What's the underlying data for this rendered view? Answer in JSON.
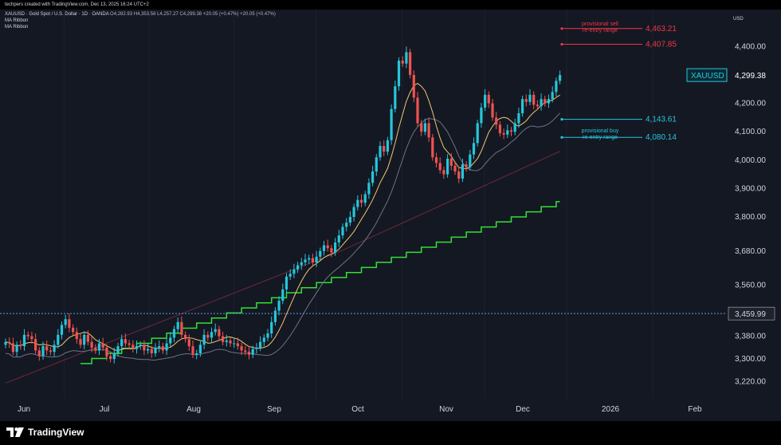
{
  "header": {
    "creator_line": "techpers created with TradingView.com, Dec 13, 2025 16:24 UTC+2"
  },
  "legend": {
    "title": "XAUUSD · Gold Spot / U.S. Dollar · 1D · OANDA",
    "ohlc": "O4,282.93 H4,353.56 L4,257.27 C4,299.38 +20.05 (+0.47%) +20.05 (+0.47%)",
    "indicator_1": "MA Ribbon",
    "indicator_2": "MA Ribbon"
  },
  "currency": "USD",
  "branding": {
    "name": "TradingView"
  },
  "colors": {
    "up": "#26c6da",
    "down": "#ef5350",
    "sell_zone": "#f23645",
    "buy_zone": "#26c6da",
    "staircase": "#33e033",
    "ma_fast": "#f0c86e",
    "ma_mid": "#6e7382",
    "ma_slow": "#6e2a38",
    "background": "#141823"
  },
  "chart_data": {
    "type": "candlestick",
    "symbol": "XAUUSD",
    "timeframe": "1D",
    "y_axis": {
      "min": 3160,
      "max": 4530,
      "ticks": [
        3220,
        3300,
        3380,
        3460,
        3560,
        3680,
        3800,
        3900,
        4000,
        4100,
        4200,
        4300,
        4400
      ],
      "tick_labels": [
        "3,220.00",
        "3,300.00",
        "3,380.00",
        "3,459.99",
        "3,560.00",
        "3,680.00",
        "3,800.00",
        "3,900.00",
        "4,000.00",
        "4,100.00",
        "4,200.00",
        "4,299.38",
        "4,400.00"
      ]
    },
    "x_axis": {
      "labels": [
        "Jun",
        "Jul",
        "Aug",
        "Sep",
        "Oct",
        "Nov",
        "Dec",
        "2026",
        "Feb"
      ]
    },
    "last_price": {
      "label": "XAUUSD",
      "value": "4,299.38"
    },
    "reference_line": {
      "value": "3,459.99"
    },
    "annotations": [
      {
        "text_1": "provisional sell",
        "text_2": "re-entry range",
        "values": [
          "4,463.21",
          "4,407.85"
        ],
        "kind": "sell"
      },
      {
        "text_1": "provisional buy",
        "text_2": "re-entry range",
        "values": [
          "4,143.61",
          "4,080.14"
        ],
        "kind": "buy"
      }
    ],
    "closes": [
      3360,
      3355,
      3325,
      3350,
      3345,
      3385,
      3380,
      3370,
      3330,
      3310,
      3345,
      3330,
      3325,
      3350,
      3385,
      3420,
      3440,
      3410,
      3395,
      3370,
      3350,
      3385,
      3360,
      3340,
      3330,
      3355,
      3340,
      3310,
      3300,
      3320,
      3345,
      3370,
      3355,
      3350,
      3335,
      3345,
      3350,
      3330,
      3335,
      3320,
      3340,
      3345,
      3330,
      3355,
      3375,
      3405,
      3430,
      3385,
      3370,
      3345,
      3315,
      3320,
      3350,
      3385,
      3375,
      3395,
      3405,
      3380,
      3360,
      3365,
      3355,
      3355,
      3345,
      3330,
      3325,
      3315,
      3335,
      3340,
      3360,
      3375,
      3390,
      3430,
      3470,
      3505,
      3545,
      3590,
      3600,
      3615,
      3630,
      3640,
      3650,
      3655,
      3640,
      3660,
      3680,
      3700,
      3690,
      3675,
      3710,
      3735,
      3765,
      3780,
      3800,
      3835,
      3860,
      3850,
      3880,
      3920,
      3960,
      4010,
      4050,
      4030,
      4070,
      4180,
      4260,
      4350,
      4340,
      4380,
      4300,
      4220,
      4130,
      4100,
      4130,
      4080,
      4010,
      3990,
      3965,
      3950,
      4005,
      3980,
      3960,
      3935,
      3985,
      3975,
      4020,
      4060,
      4130,
      4185,
      4230,
      4200,
      4150,
      4125,
      4095,
      4090,
      4105,
      4100,
      4130,
      4165,
      4215,
      4205,
      4230,
      4195,
      4190,
      4215,
      4200,
      4215,
      4240,
      4279,
      4299.38
    ]
  }
}
